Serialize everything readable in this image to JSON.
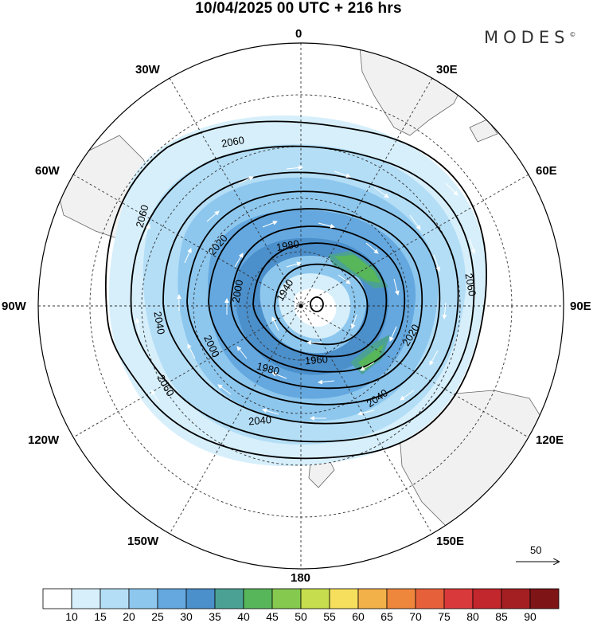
{
  "header": {
    "title": "10/04/2025  00 UTC  + 216 hrs",
    "brand": "MODES",
    "brand_mark": "©"
  },
  "longitude_labels": {
    "lon_0": "0",
    "lon_30e": "30E",
    "lon_60e": "60E",
    "lon_90e": "90E",
    "lon_120e": "120E",
    "lon_150e": "150E",
    "lon_180": "180",
    "lon_150w": "150W",
    "lon_120w": "120W",
    "lon_90w": "90W",
    "lon_60w": "60W",
    "lon_30w": "30W"
  },
  "contours": {
    "units_note": "",
    "levels": [
      {
        "id": "c1940",
        "label": "1940"
      },
      {
        "id": "c1960",
        "label": "1960"
      },
      {
        "id": "c1980",
        "label": "1980"
      },
      {
        "id": "c1980b",
        "label": "1980"
      },
      {
        "id": "c2000",
        "label": "2000"
      },
      {
        "id": "c2000b",
        "label": "2000"
      },
      {
        "id": "c2020",
        "label": "2020"
      },
      {
        "id": "c2020b",
        "label": "2020"
      },
      {
        "id": "c2040",
        "label": "2040"
      },
      {
        "id": "c2040b",
        "label": "2040"
      },
      {
        "id": "c2040c",
        "label": "2040"
      },
      {
        "id": "c2060",
        "label": "2060"
      },
      {
        "id": "c2060b",
        "label": "2060"
      },
      {
        "id": "c2060c",
        "label": "2060"
      },
      {
        "id": "c2060d",
        "label": "2060"
      }
    ]
  },
  "wind_vector_scale": {
    "reference_value": "50"
  },
  "colorbar": {
    "labels": [
      "10",
      "15",
      "20",
      "25",
      "30",
      "35",
      "40",
      "45",
      "50",
      "55",
      "60",
      "65",
      "70",
      "75",
      "80",
      "85",
      "90"
    ],
    "colors": [
      "#ffffff",
      "#d6effb",
      "#b4def6",
      "#8dc7ee",
      "#64a8df",
      "#4b8fcb",
      "#4ba294",
      "#58b65a",
      "#86c94f",
      "#c6de4d",
      "#f6df5c",
      "#f3b14a",
      "#ee863c",
      "#e6613a",
      "#d9393a",
      "#c1272d",
      "#a31f22",
      "#7f1417"
    ]
  }
}
